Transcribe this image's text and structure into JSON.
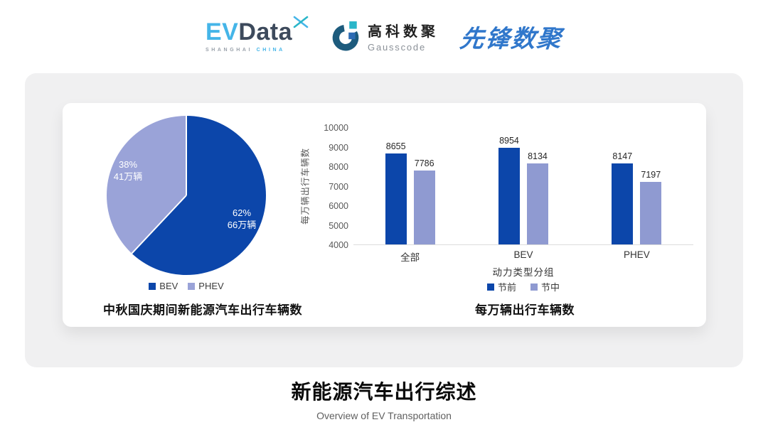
{
  "header": {
    "evdata": {
      "part1": "EV",
      "part2": "Data",
      "sub1": "SHANGHAI",
      "sub2": "CHINA"
    },
    "gausscode": {
      "name_cn": "高科数聚",
      "name_en": "Gausscode"
    },
    "xianfeng": {
      "text": "先锋数聚"
    }
  },
  "colors": {
    "primary_blue": "#0c46aa",
    "secondary_periwinkle": "#97a1d6",
    "evdata_lightblue": "#45b5e8",
    "evdata_slate": "#3d4a5c",
    "gausscode_teal": "#2ab6c9",
    "gausscode_navy": "#1d5b7d",
    "xianfeng_blue": "#3077cb",
    "panel_gray": "#f0f0f1"
  },
  "chart_data": [
    {
      "type": "pie",
      "title": "中秋国庆期间新能源汽车出行车辆数",
      "start_angle": "12-oclock-clockwise",
      "slices": [
        {
          "label": "BEV",
          "percent": 62,
          "percent_label": "62%",
          "amount_label": "66万辆",
          "color": "#0c46aa"
        },
        {
          "label": "PHEV",
          "percent": 38,
          "percent_label": "38%",
          "amount_label": "41万辆",
          "color": "#9aa3d8"
        }
      ],
      "legend_position": "bottom"
    },
    {
      "type": "bar",
      "title": "每万辆出行车辆数",
      "categories": [
        "全部",
        "BEV",
        "PHEV"
      ],
      "series": [
        {
          "name": "节前",
          "color": "#0c46aa",
          "values": [
            8655,
            8954,
            8147
          ]
        },
        {
          "name": "节中",
          "color": "#8f9ad1",
          "values": [
            7786,
            8134,
            7197
          ]
        }
      ],
      "xlabel": "动力类型分组",
      "ylabel": "每万辆出行车辆数",
      "ylim": [
        4000,
        10000
      ],
      "ytick_step": 1000,
      "grid": false,
      "legend_position": "bottom"
    }
  ],
  "footer": {
    "title": "新能源汽车出行综述",
    "subtitle": "Overview of EV Transportation"
  }
}
